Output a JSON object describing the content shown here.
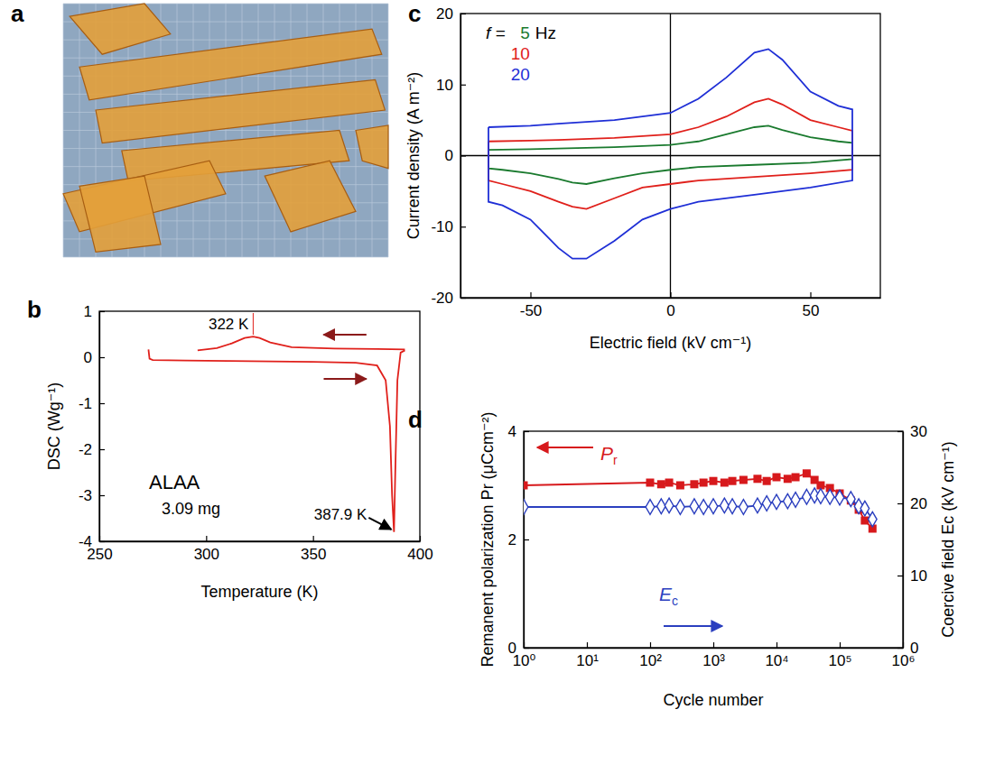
{
  "chart_data": [
    {
      "panel": "a",
      "type": "image"
    },
    {
      "panel": "b",
      "type": "line",
      "x_label": "Temperature (K)",
      "y_label": "DSC (Wg⁻¹)",
      "xlim": [
        250,
        400
      ],
      "xticks": [
        250,
        300,
        350,
        400
      ],
      "ylim": [
        -4,
        1
      ],
      "yticks": [
        -4,
        -3,
        -2,
        -1,
        0,
        1
      ],
      "annotations": [
        {
          "text": "322 K",
          "x": 322,
          "y": 0.45
        },
        {
          "text": "387.9 K",
          "x": 387.9,
          "y": -3.8
        },
        {
          "text": "ALAA"
        },
        {
          "text": "3.09 mg"
        }
      ],
      "series": [
        {
          "color": "#e0201b",
          "x": [
            273,
            273.5,
            275,
            290,
            310,
            330,
            350,
            370,
            380,
            384,
            386,
            387,
            387.9,
            388.5,
            389.5,
            391,
            393
          ],
          "values": [
            0.17,
            -0.03,
            -0.06,
            -0.07,
            -0.08,
            -0.09,
            -0.1,
            -0.12,
            -0.18,
            -0.5,
            -1.5,
            -3,
            -3.8,
            -2.5,
            -0.5,
            0.1,
            0.15
          ]
        },
        {
          "color": "#e0201b",
          "x": [
            393,
            380,
            360,
            340,
            330,
            325,
            322,
            318,
            312,
            305,
            296
          ],
          "values": [
            0.17,
            0.18,
            0.19,
            0.22,
            0.32,
            0.42,
            0.45,
            0.42,
            0.3,
            0.2,
            0.15
          ]
        }
      ]
    },
    {
      "panel": "c",
      "type": "line",
      "x_label": "Electric field (kV cm⁻¹)",
      "y_label": "Current density (A m⁻²)",
      "xlim": [
        -75,
        75
      ],
      "xticks": [
        -50,
        0,
        50
      ],
      "ylim": [
        -20,
        20
      ],
      "yticks": [
        -20,
        -10,
        0,
        10,
        20
      ],
      "legend": "upper left",
      "legend_title": "f =",
      "legend_unit": "Hz",
      "series": [
        {
          "name": "5",
          "color": "#1a7a2e",
          "x": [
            -65,
            -50,
            -40,
            -20,
            0,
            10,
            20,
            30,
            35,
            40,
            50,
            60,
            65,
            65,
            50,
            30,
            10,
            0,
            -10,
            -20,
            -30,
            -35,
            -40,
            -50,
            -60,
            -65,
            -65
          ],
          "values": [
            0.8,
            0.9,
            1,
            1.2,
            1.5,
            2,
            3,
            4,
            4.2,
            3.6,
            2.6,
            2,
            1.8,
            -0.5,
            -1,
            -1.3,
            -1.6,
            -2,
            -2.5,
            -3.2,
            -4,
            -3.8,
            -3.3,
            -2.5,
            -2,
            -1.8,
            0.8
          ]
        },
        {
          "name": "10",
          "color": "#e0201b",
          "x": [
            -65,
            -50,
            -40,
            -20,
            0,
            10,
            20,
            30,
            35,
            40,
            50,
            60,
            65,
            65,
            50,
            30,
            10,
            0,
            -10,
            -20,
            -30,
            -35,
            -40,
            -50,
            -60,
            -65,
            -65
          ],
          "values": [
            2,
            2.1,
            2.2,
            2.5,
            3,
            4,
            5.5,
            7.5,
            8,
            7.2,
            5,
            4,
            3.5,
            -2,
            -2.5,
            -3,
            -3.5,
            -4,
            -4.5,
            -6,
            -7.5,
            -7.2,
            -6.5,
            -5,
            -4,
            -3.5,
            2
          ]
        },
        {
          "name": "20",
          "color": "#1f2fd6",
          "x": [
            -65,
            -50,
            -40,
            -20,
            0,
            10,
            20,
            30,
            35,
            40,
            50,
            60,
            65,
            65,
            50,
            30,
            10,
            0,
            -10,
            -20,
            -30,
            -35,
            -40,
            -50,
            -60,
            -65,
            -65
          ],
          "values": [
            4,
            4.2,
            4.5,
            5,
            6,
            8,
            11,
            14.5,
            15,
            13.5,
            9,
            7,
            6.5,
            -3.5,
            -4.5,
            -5.5,
            -6.5,
            -7.5,
            -9,
            -12,
            -14.5,
            -14.5,
            -13,
            -9,
            -7,
            -6.5,
            4
          ]
        }
      ]
    },
    {
      "panel": "d",
      "type": "line",
      "log": "x",
      "x_label": "Cycle number",
      "y_label": "Remanent polarization  Pr (μCcm⁻²)",
      "y2_label": "Coercive field Ec (kV cm⁻¹)",
      "xlim": [
        1,
        1000000
      ],
      "xticks": [
        {
          "value": 1,
          "label": "10⁰"
        },
        {
          "value": 10,
          "label": "10¹"
        },
        {
          "value": 100,
          "label": "10²"
        },
        {
          "value": 1000,
          "label": "10³"
        },
        {
          "value": 10000,
          "label": "10⁴"
        },
        {
          "value": 100000,
          "label": "10⁵"
        },
        {
          "value": 1000000,
          "label": "10⁶"
        }
      ],
      "ylim": [
        0,
        4
      ],
      "yticks": [
        0,
        2,
        4
      ],
      "y2lim": [
        0,
        30
      ],
      "y2ticks": [
        0,
        10,
        20,
        30
      ],
      "x": [
        1,
        100,
        150,
        200,
        300,
        500,
        700,
        1000,
        1500,
        2000,
        3000,
        5000,
        7000,
        10000,
        15000,
        20000,
        30000,
        40000,
        50000,
        70000,
        100000,
        150000,
        200000,
        250000,
        330000
      ],
      "series": [
        {
          "name": "Pr",
          "color": "#d7191c",
          "marker": "square",
          "values": [
            3.0,
            3.05,
            3.02,
            3.05,
            3.0,
            3.02,
            3.05,
            3.08,
            3.05,
            3.08,
            3.1,
            3.12,
            3.08,
            3.15,
            3.12,
            3.15,
            3.22,
            3.1,
            3.0,
            2.95,
            2.85,
            2.72,
            2.55,
            2.35,
            2.2
          ]
        },
        {
          "name": "Ec",
          "color": "#2b3fbf",
          "marker": "diamond",
          "axis": "y2",
          "values": [
            19.5,
            19.5,
            19.6,
            19.7,
            19.5,
            19.6,
            19.5,
            19.6,
            19.7,
            19.6,
            19.5,
            19.7,
            20.0,
            20.2,
            20.3,
            20.5,
            20.9,
            21.1,
            21.0,
            20.9,
            20.8,
            20.6,
            19.6,
            19.3,
            17.8
          ]
        }
      ]
    }
  ]
}
